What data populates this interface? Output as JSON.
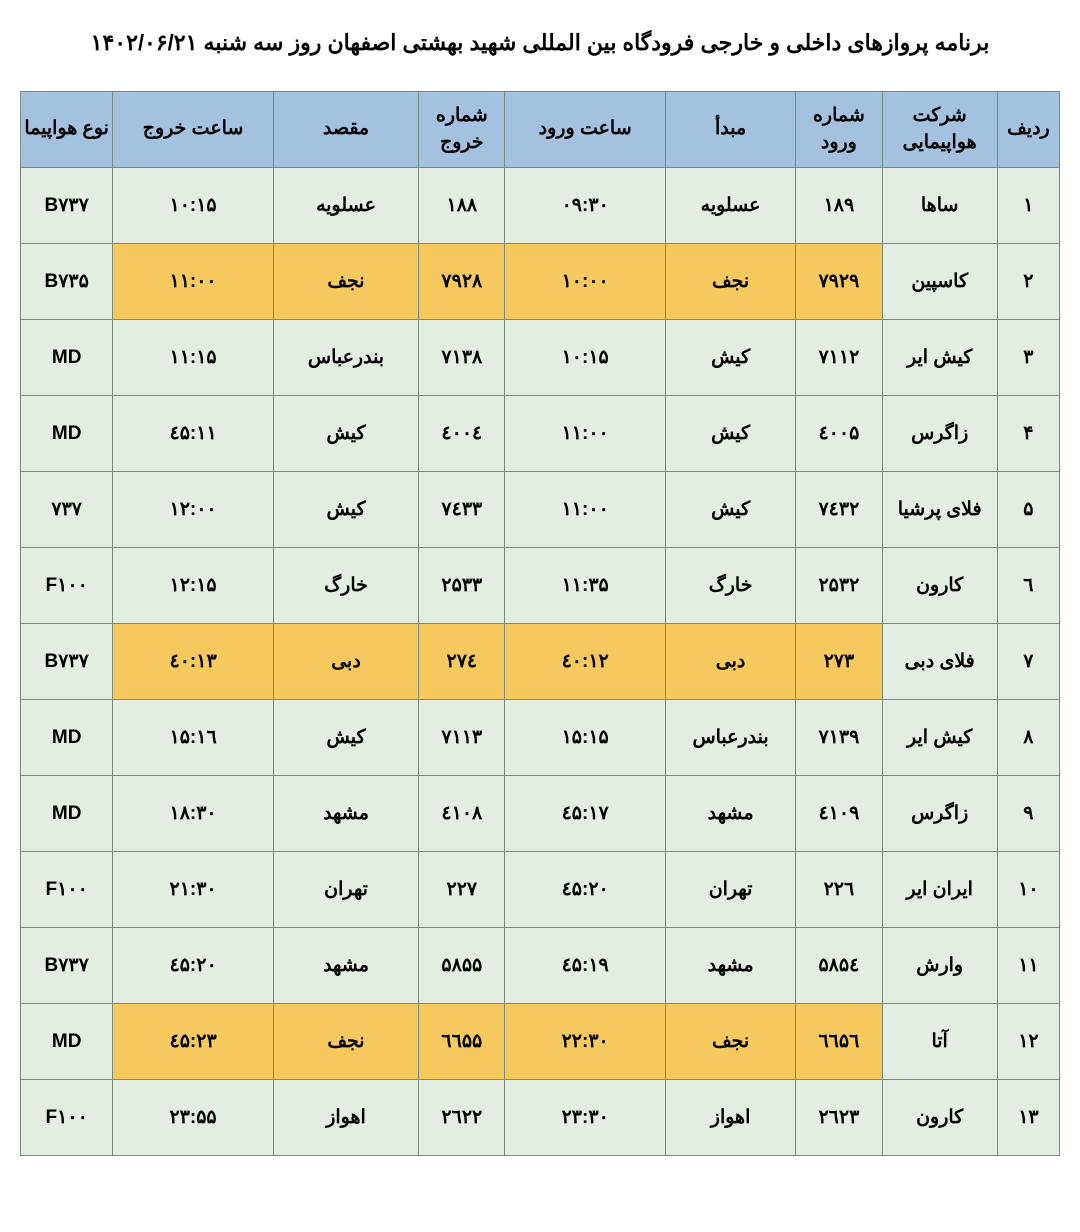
{
  "title": "برنامه پروازهای داخلی و خارجی فرودگاه بین المللی شهید بهشتی اصفهان روز سه شنبه ۱۴۰۲/۰۶/۲۱",
  "table": {
    "header_bg": "#a4c2e0",
    "cell_bg": "#e4ede1",
    "highlight_bg": "#f5c95e",
    "border_color": "#7a8a7a",
    "columns": [
      {
        "key": "row",
        "label": "ردیف"
      },
      {
        "key": "airline",
        "label": "شرکت هواپیمایی"
      },
      {
        "key": "arr_num",
        "label": "شماره ورود"
      },
      {
        "key": "origin",
        "label": "مبدأ"
      },
      {
        "key": "arr_time",
        "label": "ساعت ورود"
      },
      {
        "key": "dep_num",
        "label": "شماره خروج"
      },
      {
        "key": "dest",
        "label": "مقصد"
      },
      {
        "key": "dep_time",
        "label": "ساعت خروج"
      },
      {
        "key": "aircraft",
        "label": "نوع هواپیما"
      }
    ],
    "rows": [
      {
        "row": "۱",
        "airline": "ساها",
        "arr_num": "۱۸۹",
        "origin": "عسلویه",
        "arr_time": "۰۹:۳۰",
        "dep_num": "۱۸۸",
        "dest": "عسلویه",
        "dep_time": "۱۰:۱۵",
        "aircraft": "B۷۳۷",
        "highlight": false
      },
      {
        "row": "۲",
        "airline": "کاسپین",
        "arr_num": "۷۹۲۹",
        "origin": "نجف",
        "arr_time": "۱۰:۰۰",
        "dep_num": "۷۹۲۸",
        "dest": "نجف",
        "dep_time": "۱۱:۰۰",
        "aircraft": "B۷۳۵",
        "highlight": true
      },
      {
        "row": "۳",
        "airline": "کیش ایر",
        "arr_num": "۷۱۱۲",
        "origin": "کیش",
        "arr_time": "۱۰:۱۵",
        "dep_num": "۷۱۳۸",
        "dest": "بندرعباس",
        "dep_time": "۱۱:۱۵",
        "aircraft": "MD",
        "highlight": false
      },
      {
        "row": "۴",
        "airline": "زاگرس",
        "arr_num": "٤۰۰۵",
        "origin": "کیش",
        "arr_time": "۱۱:۰۰",
        "dep_num": "٤۰۰٤",
        "dest": "کیش",
        "dep_time": "۱۱:٤۵",
        "aircraft": "MD",
        "highlight": false
      },
      {
        "row": "۵",
        "airline": "فلای پرشیا",
        "arr_num": "۷٤۳۲",
        "origin": "کیش",
        "arr_time": "۱۱:۰۰",
        "dep_num": "۷٤۳۳",
        "dest": "کیش",
        "dep_time": "۱۲:۰۰",
        "aircraft": "۷۳۷",
        "highlight": false
      },
      {
        "row": "٦",
        "airline": "کارون",
        "arr_num": "۲۵۳۲",
        "origin": "خارگ",
        "arr_time": "۱۱:۳۵",
        "dep_num": "۲۵۳۳",
        "dest": "خارگ",
        "dep_time": "۱۲:۱۵",
        "aircraft": "F۱۰۰",
        "highlight": false
      },
      {
        "row": "۷",
        "airline": "فلای دبی",
        "arr_num": "۲۷۳",
        "origin": "دبی",
        "arr_time": "۱۲:٤۰",
        "dep_num": "۲۷٤",
        "dest": "دبی",
        "dep_time": "۱۳:٤۰",
        "aircraft": "B۷۳۷",
        "highlight": true
      },
      {
        "row": "۸",
        "airline": "کیش ایر",
        "arr_num": "۷۱۳۹",
        "origin": "بندرعباس",
        "arr_time": "۱۵:۱۵",
        "dep_num": "۷۱۱۳",
        "dest": "کیش",
        "dep_time": "۱٦:۱۵",
        "aircraft": "MD",
        "highlight": false
      },
      {
        "row": "۹",
        "airline": "زاگرس",
        "arr_num": "٤۱۰۹",
        "origin": "مشهد",
        "arr_time": "۱۷:٤۵",
        "dep_num": "٤۱۰۸",
        "dest": "مشهد",
        "dep_time": "۱۸:۳۰",
        "aircraft": "MD",
        "highlight": false
      },
      {
        "row": "۱۰",
        "airline": "ایران ایر",
        "arr_num": "۲۲٦",
        "origin": "تهران",
        "arr_time": "۲۰:٤۵",
        "dep_num": "۲۲۷",
        "dest": "تهران",
        "dep_time": "۲۱:۳۰",
        "aircraft": "F۱۰۰",
        "highlight": false
      },
      {
        "row": "۱۱",
        "airline": "وارش",
        "arr_num": "۵۸۵٤",
        "origin": "مشهد",
        "arr_time": "۱۹:٤۵",
        "dep_num": "۵۸۵۵",
        "dest": "مشهد",
        "dep_time": "۲۰:٤۵",
        "aircraft": "B۷۳۷",
        "highlight": false
      },
      {
        "row": "۱۲",
        "airline": "آتا",
        "arr_num": "٦٦۵٦",
        "origin": "نجف",
        "arr_time": "۲۲:۳۰",
        "dep_num": "٦٦۵۵",
        "dest": "نجف",
        "dep_time": "۲۳:٤۵",
        "aircraft": "MD",
        "highlight": true
      },
      {
        "row": "۱۳",
        "airline": "کارون",
        "arr_num": "۲٦۲۳",
        "origin": "اهواز",
        "arr_time": "۲۳:۳۰",
        "dep_num": "۲٦۲۲",
        "dest": "اهواز",
        "dep_time": "۲۳:۵۵",
        "aircraft": "F۱۰۰",
        "highlight": false
      }
    ]
  }
}
